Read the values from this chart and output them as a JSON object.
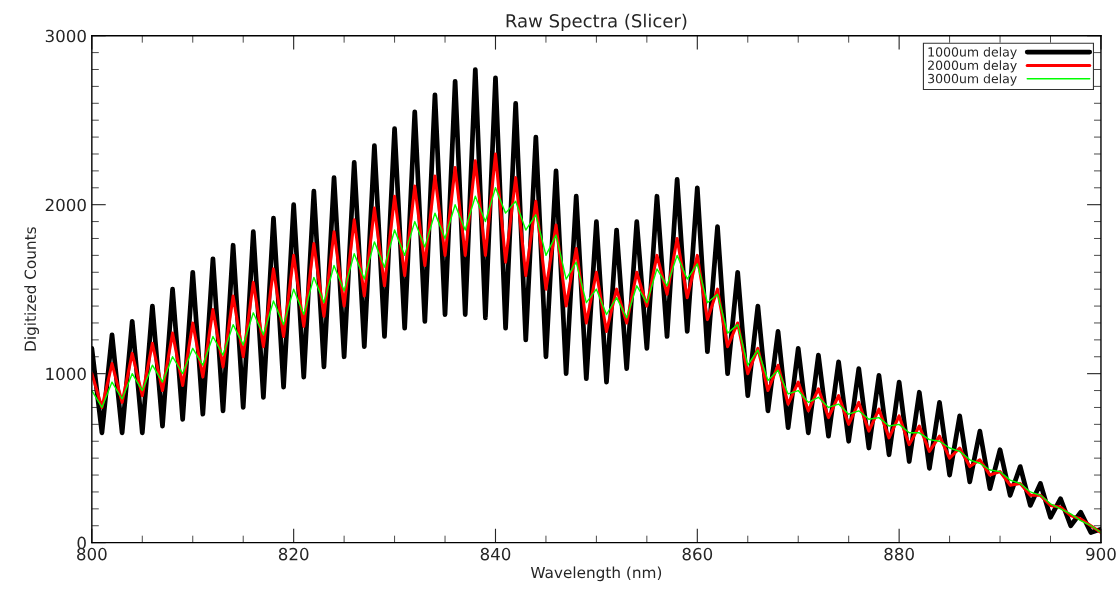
{
  "chart_data": {
    "type": "line",
    "title": "Raw Spectra (Slicer)",
    "xlabel": "Wavelength (nm)",
    "ylabel": "Digitized Counts",
    "x": [
      800,
      801,
      802,
      803,
      804,
      805,
      806,
      807,
      808,
      809,
      810,
      811,
      812,
      813,
      814,
      815,
      816,
      817,
      818,
      819,
      820,
      821,
      822,
      823,
      824,
      825,
      826,
      827,
      828,
      829,
      830,
      831,
      832,
      833,
      834,
      835,
      836,
      837,
      838,
      839,
      840,
      841,
      842,
      843,
      844,
      845,
      846,
      847,
      848,
      849,
      850,
      851,
      852,
      853,
      854,
      855,
      856,
      857,
      858,
      859,
      860,
      861,
      862,
      863,
      864,
      865,
      866,
      867,
      868,
      869,
      870,
      871,
      872,
      873,
      874,
      875,
      876,
      877,
      878,
      879,
      880,
      881,
      882,
      883,
      884,
      885,
      886,
      887,
      888,
      889,
      890,
      891,
      892,
      893,
      894,
      895,
      896,
      897,
      898,
      899,
      900
    ],
    "series": [
      {
        "name": "1000um delay",
        "color": "#000000",
        "values": [
          1150,
          650,
          1230,
          650,
          1310,
          650,
          1400,
          690,
          1500,
          730,
          1600,
          760,
          1680,
          780,
          1760,
          800,
          1840,
          860,
          1920,
          920,
          2000,
          980,
          2080,
          1040,
          2160,
          1100,
          2250,
          1160,
          2350,
          1220,
          2450,
          1270,
          2550,
          1310,
          2650,
          1350,
          2730,
          1350,
          2800,
          1330,
          2750,
          1270,
          2600,
          1200,
          2400,
          1100,
          2200,
          1000,
          2050,
          970,
          1900,
          950,
          1850,
          1030,
          1900,
          1150,
          2050,
          1220,
          2150,
          1250,
          2100,
          1130,
          1870,
          1000,
          1600,
          870,
          1400,
          780,
          1250,
          680,
          1150,
          650,
          1110,
          630,
          1070,
          600,
          1030,
          560,
          990,
          520,
          950,
          480,
          890,
          440,
          830,
          400,
          750,
          360,
          660,
          320,
          550,
          280,
          450,
          220,
          350,
          150,
          260,
          100,
          180,
          60,
          80
        ]
      },
      {
        "name": "2000um delay",
        "color": "#ff0000",
        "values": [
          1000,
          800,
          1060,
          830,
          1120,
          870,
          1180,
          900,
          1240,
          930,
          1300,
          980,
          1380,
          1040,
          1460,
          1100,
          1540,
          1160,
          1620,
          1220,
          1700,
          1280,
          1770,
          1340,
          1840,
          1400,
          1910,
          1460,
          1980,
          1520,
          2050,
          1580,
          2110,
          1640,
          2170,
          1700,
          2220,
          1700,
          2260,
          1700,
          2300,
          1660,
          2160,
          1580,
          2020,
          1500,
          1880,
          1400,
          1740,
          1300,
          1600,
          1250,
          1500,
          1300,
          1600,
          1400,
          1700,
          1470,
          1800,
          1450,
          1700,
          1320,
          1500,
          1160,
          1300,
          1000,
          1150,
          900,
          1050,
          820,
          950,
          780,
          910,
          740,
          870,
          700,
          830,
          660,
          790,
          620,
          750,
          580,
          690,
          540,
          630,
          500,
          560,
          450,
          490,
          400,
          420,
          340,
          350,
          280,
          280,
          220,
          210,
          160,
          140,
          100,
          60
        ]
      },
      {
        "name": "3000um delay",
        "color": "#00ff00",
        "values": [
          900,
          800,
          950,
          850,
          1000,
          900,
          1050,
          950,
          1100,
          1000,
          1150,
          1050,
          1220,
          1110,
          1290,
          1170,
          1360,
          1230,
          1430,
          1290,
          1500,
          1350,
          1570,
          1420,
          1640,
          1490,
          1710,
          1560,
          1780,
          1630,
          1850,
          1700,
          1900,
          1750,
          1950,
          1800,
          2000,
          1850,
          2050,
          1900,
          2100,
          1950,
          2020,
          1850,
          1940,
          1700,
          1820,
          1560,
          1660,
          1420,
          1500,
          1350,
          1450,
          1330,
          1520,
          1420,
          1620,
          1520,
          1700,
          1560,
          1650,
          1420,
          1470,
          1240,
          1290,
          1050,
          1140,
          960,
          1020,
          880,
          900,
          830,
          860,
          800,
          820,
          760,
          780,
          730,
          740,
          690,
          700,
          650,
          650,
          610,
          600,
          560,
          540,
          490,
          470,
          430,
          420,
          370,
          350,
          300,
          280,
          230,
          200,
          170,
          130,
          100,
          60
        ]
      }
    ],
    "xlim": [
      800,
      900
    ],
    "ylim": [
      0,
      3000
    ],
    "xticks": [
      800,
      820,
      840,
      860,
      880,
      900
    ],
    "yticks": [
      0,
      1000,
      2000,
      3000
    ],
    "grid": false,
    "legend": "top right",
    "line_style": "solid"
  }
}
